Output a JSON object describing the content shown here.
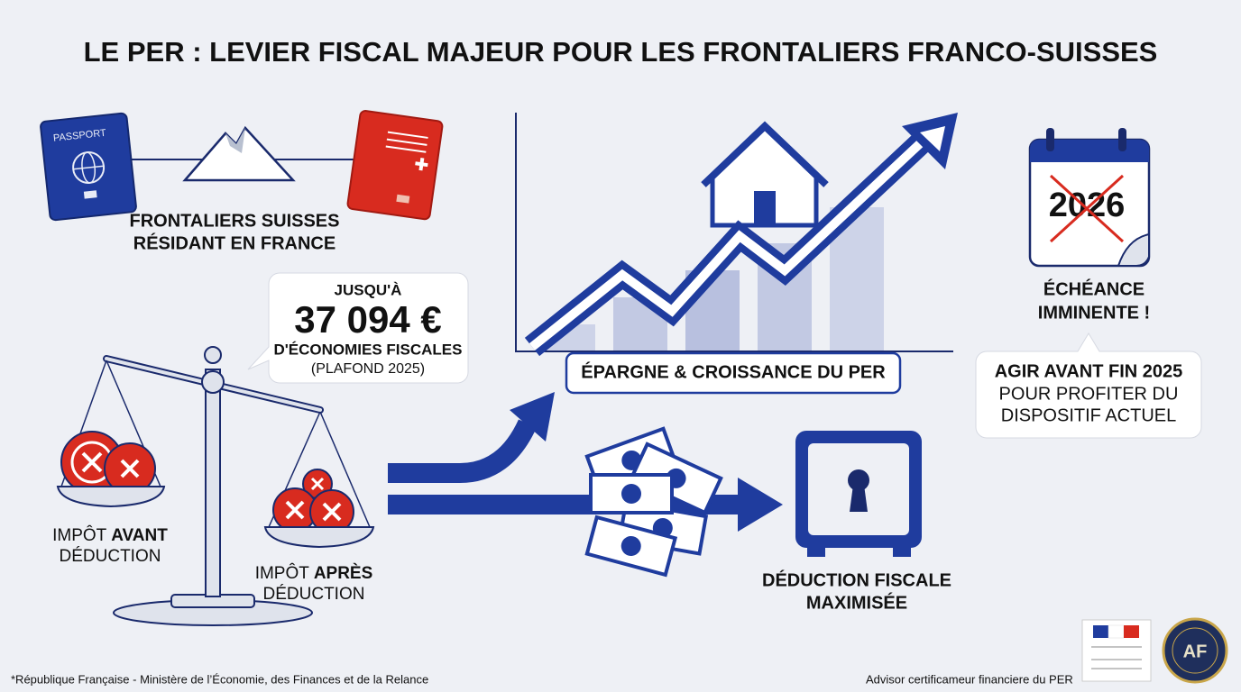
{
  "header": {
    "title": "LE PER : LEVIER FISCAL MAJEUR POUR LES FRONTALIERS FRANCO-SUISSES"
  },
  "frontaliers": {
    "passport": "PASSPORT",
    "lines": [
      "FRONTALIERS SUISSES",
      "RÉSIDANT EN FRANCE"
    ]
  },
  "savings_callout": {
    "prefix": "JUSQU'À",
    "amount": "37 094 €",
    "text": "D'ÉCONOMIES FISCALES",
    "note": "(PLAFOND 2025)"
  },
  "scale": {
    "before": {
      "lead": "IMPÔT ",
      "bold": "AVANT",
      "tail": "DÉDUCTION"
    },
    "after": {
      "lead": "IMPÔT ",
      "bold": "APRÈS",
      "tail": "DÉDUCTION"
    }
  },
  "growth": {
    "label": "ÉPARGNE & CROISSANCE DU PER"
  },
  "deadline": {
    "calendar_year": "2026",
    "lines": [
      "ÉCHÉANCE",
      "IMMINENTE !"
    ],
    "callout": [
      "AGIR AVANT FIN 2025",
      "POUR PROFITER DU",
      "DISPOSITIF ACTUEL"
    ]
  },
  "deduction": {
    "lines": [
      "DÉDUCTION FISCALE",
      "MAXIMISÉE"
    ]
  },
  "footer": {
    "left": "*République Française - Ministère de l’Économie, des Finances et de la Relance",
    "right": "Advisor certificameur financiere du PER",
    "logo": "AF"
  }
}
